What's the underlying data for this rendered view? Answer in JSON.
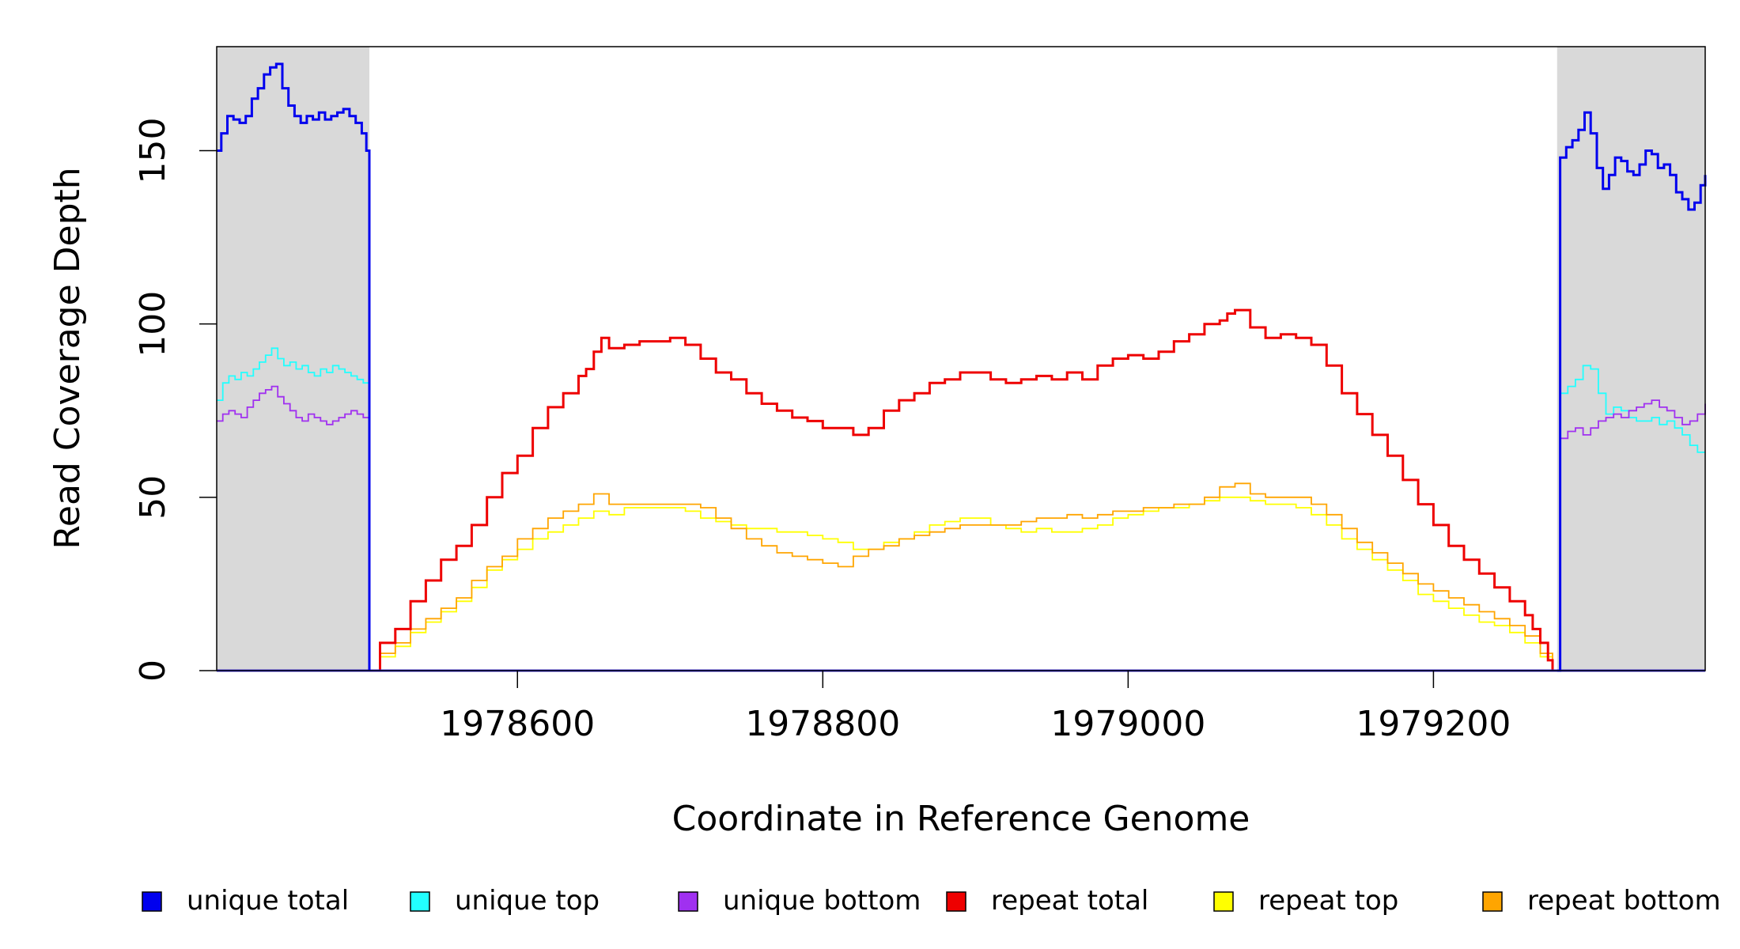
{
  "chart_data": {
    "type": "line",
    "title": "",
    "xlabel": "Coordinate in Reference Genome",
    "ylabel": "Read Coverage Depth",
    "xlim": [
      1978403,
      1979378
    ],
    "ylim": [
      0,
      180
    ],
    "x_ticks": [
      1978600,
      1978800,
      1979000,
      1979200
    ],
    "x_tick_labels": [
      "1978600",
      "1978800",
      "1979000",
      "1979200"
    ],
    "y_ticks": [
      0,
      50,
      100,
      150
    ],
    "y_tick_labels": [
      "0",
      "50",
      "100",
      "150"
    ],
    "grid": false,
    "legend_position": "bottom",
    "unique_regions": [
      [
        1978403,
        1978503
      ],
      [
        1979281,
        1979378
      ]
    ],
    "colors": {
      "unique_region_fill": "#d9d9d9",
      "unique total": "#0000ee",
      "unique top": "#22ffff",
      "unique bottom": "#a030f0",
      "repeat total": "#ee0000",
      "repeat top": "#ffff00",
      "repeat bottom": "#ffa500"
    },
    "series": [
      {
        "name": "unique total",
        "segments": [
          {
            "x": [
              1978403,
              1978406,
              1978410,
              1978414,
              1978418,
              1978422,
              1978426,
              1978430,
              1978434,
              1978438,
              1978442,
              1978446,
              1978450,
              1978454,
              1978458,
              1978462,
              1978466,
              1978470,
              1978474,
              1978478,
              1978482,
              1978486,
              1978490,
              1978494,
              1978498,
              1978501,
              1978503
            ],
            "y": [
              150,
              155,
              160,
              159,
              158,
              160,
              165,
              168,
              172,
              174,
              175,
              168,
              163,
              160,
              158,
              160,
              159,
              161,
              159,
              160,
              161,
              162,
              160,
              158,
              155,
              150,
              0
            ]
          },
          {
            "x": [
              1979281,
              1979283,
              1979287,
              1979291,
              1979295,
              1979299,
              1979303,
              1979307,
              1979311,
              1979315,
              1979319,
              1979323,
              1979327,
              1979331,
              1979335,
              1979339,
              1979343,
              1979347,
              1979351,
              1979355,
              1979359,
              1979363,
              1979367,
              1979371,
              1979375,
              1979378
            ],
            "y": [
              0,
              148,
              151,
              153,
              156,
              161,
              155,
              145,
              139,
              143,
              148,
              147,
              144,
              143,
              146,
              150,
              149,
              145,
              146,
              143,
              138,
              136,
              133,
              135,
              140,
              143
            ]
          }
        ]
      },
      {
        "name": "unique top",
        "segments": [
          {
            "x": [
              1978403,
              1978407,
              1978411,
              1978415,
              1978419,
              1978423,
              1978427,
              1978431,
              1978435,
              1978439,
              1978443,
              1978447,
              1978451,
              1978455,
              1978459,
              1978463,
              1978467,
              1978471,
              1978475,
              1978479,
              1978483,
              1978487,
              1978491,
              1978495,
              1978499,
              1978503
            ],
            "y": [
              78,
              83,
              85,
              84,
              86,
              85,
              87,
              89,
              91,
              93,
              90,
              88,
              89,
              87,
              88,
              86,
              85,
              87,
              86,
              88,
              87,
              86,
              85,
              84,
              83,
              0
            ]
          },
          {
            "x": [
              1979281,
              1979283,
              1979288,
              1979293,
              1979298,
              1979303,
              1979308,
              1979313,
              1979318,
              1979323,
              1979328,
              1979333,
              1979338,
              1979343,
              1979348,
              1979353,
              1979358,
              1979363,
              1979368,
              1979373,
              1979378
            ],
            "y": [
              0,
              80,
              82,
              84,
              88,
              87,
              80,
              74,
              76,
              75,
              73,
              72,
              72,
              73,
              71,
              72,
              70,
              68,
              65,
              63,
              63
            ]
          }
        ]
      },
      {
        "name": "unique bottom",
        "segments": [
          {
            "x": [
              1978403,
              1978407,
              1978411,
              1978415,
              1978419,
              1978423,
              1978427,
              1978431,
              1978435,
              1978439,
              1978443,
              1978447,
              1978451,
              1978455,
              1978459,
              1978463,
              1978467,
              1978471,
              1978475,
              1978479,
              1978483,
              1978487,
              1978491,
              1978495,
              1978499,
              1978503
            ],
            "y": [
              72,
              74,
              75,
              74,
              73,
              76,
              78,
              80,
              81,
              82,
              79,
              77,
              75,
              73,
              72,
              74,
              73,
              72,
              71,
              72,
              73,
              74,
              75,
              74,
              73,
              0
            ]
          },
          {
            "x": [
              1979281,
              1979283,
              1979288,
              1979293,
              1979298,
              1979303,
              1979308,
              1979313,
              1979318,
              1979323,
              1979328,
              1979333,
              1979338,
              1979343,
              1979348,
              1979353,
              1979358,
              1979363,
              1979368,
              1979373,
              1979378
            ],
            "y": [
              0,
              67,
              69,
              70,
              68,
              70,
              72,
              73,
              74,
              73,
              75,
              76,
              77,
              78,
              76,
              75,
              73,
              71,
              72,
              74,
              77
            ]
          }
        ]
      },
      {
        "name": "repeat total",
        "segments": [
          {
            "x": [
              1978503,
              1978510,
              1978520,
              1978530,
              1978540,
              1978550,
              1978560,
              1978570,
              1978580,
              1978590,
              1978600,
              1978610,
              1978620,
              1978630,
              1978640,
              1978645,
              1978650,
              1978655,
              1978660,
              1978670,
              1978680,
              1978690,
              1978700,
              1978710,
              1978720,
              1978730,
              1978740,
              1978750,
              1978760,
              1978770,
              1978780,
              1978790,
              1978800,
              1978810,
              1978820,
              1978830,
              1978840,
              1978850,
              1978860,
              1978870,
              1978880,
              1978890,
              1978900,
              1978910,
              1978920,
              1978930,
              1978940,
              1978950,
              1978960,
              1978970,
              1978980,
              1978990,
              1979000,
              1979010,
              1979020,
              1979030,
              1979040,
              1979050,
              1979060,
              1979065,
              1979070,
              1979080,
              1979090,
              1979100,
              1979110,
              1979120,
              1979130,
              1979140,
              1979150,
              1979160,
              1979170,
              1979180,
              1979190,
              1979200,
              1979210,
              1979220,
              1979230,
              1979240,
              1979250,
              1979260,
              1979265,
              1979270,
              1979275,
              1979278
            ],
            "y": [
              0,
              8,
              12,
              20,
              26,
              32,
              36,
              42,
              50,
              57,
              62,
              70,
              76,
              80,
              85,
              87,
              92,
              96,
              93,
              94,
              95,
              95,
              96,
              94,
              90,
              86,
              84,
              80,
              77,
              75,
              73,
              72,
              70,
              70,
              68,
              70,
              75,
              78,
              80,
              83,
              84,
              86,
              86,
              84,
              83,
              84,
              85,
              84,
              86,
              84,
              88,
              90,
              91,
              90,
              92,
              95,
              97,
              100,
              101,
              103,
              104,
              99,
              96,
              97,
              96,
              94,
              88,
              80,
              74,
              68,
              62,
              55,
              48,
              42,
              36,
              32,
              28,
              24,
              20,
              16,
              12,
              8,
              3,
              0
            ]
          }
        ]
      },
      {
        "name": "repeat top",
        "segments": [
          {
            "x": [
              1978503,
              1978510,
              1978520,
              1978530,
              1978540,
              1978550,
              1978560,
              1978570,
              1978580,
              1978590,
              1978600,
              1978610,
              1978620,
              1978630,
              1978640,
              1978650,
              1978660,
              1978670,
              1978680,
              1978690,
              1978700,
              1978710,
              1978720,
              1978730,
              1978740,
              1978750,
              1978760,
              1978770,
              1978780,
              1978790,
              1978800,
              1978810,
              1978820,
              1978830,
              1978840,
              1978850,
              1978860,
              1978870,
              1978880,
              1978890,
              1978900,
              1978910,
              1978920,
              1978930,
              1978940,
              1978950,
              1978960,
              1978970,
              1978980,
              1978990,
              1979000,
              1979010,
              1979020,
              1979030,
              1979040,
              1979050,
              1979060,
              1979070,
              1979080,
              1979090,
              1979100,
              1979110,
              1979120,
              1979130,
              1979140,
              1979150,
              1979160,
              1979170,
              1979180,
              1979190,
              1979200,
              1979210,
              1979220,
              1979230,
              1979240,
              1979250,
              1979260,
              1979270,
              1979278
            ],
            "y": [
              0,
              4,
              7,
              11,
              14,
              17,
              20,
              24,
              29,
              32,
              35,
              38,
              40,
              42,
              44,
              46,
              45,
              47,
              47,
              47,
              47,
              46,
              44,
              43,
              42,
              41,
              41,
              40,
              40,
              39,
              38,
              37,
              35,
              35,
              37,
              38,
              40,
              42,
              43,
              44,
              44,
              42,
              41,
              40,
              41,
              40,
              40,
              41,
              42,
              44,
              45,
              46,
              47,
              47,
              48,
              49,
              50,
              50,
              49,
              48,
              48,
              47,
              45,
              42,
              38,
              35,
              32,
              29,
              26,
              22,
              20,
              18,
              16,
              14,
              13,
              11,
              8,
              4,
              0
            ]
          }
        ]
      },
      {
        "name": "repeat bottom",
        "segments": [
          {
            "x": [
              1978503,
              1978510,
              1978520,
              1978530,
              1978540,
              1978550,
              1978560,
              1978570,
              1978580,
              1978590,
              1978600,
              1978610,
              1978620,
              1978630,
              1978640,
              1978650,
              1978660,
              1978670,
              1978680,
              1978690,
              1978700,
              1978710,
              1978720,
              1978730,
              1978740,
              1978750,
              1978760,
              1978770,
              1978780,
              1978790,
              1978800,
              1978810,
              1978820,
              1978830,
              1978840,
              1978850,
              1978860,
              1978870,
              1978880,
              1978890,
              1978900,
              1978910,
              1978920,
              1978930,
              1978940,
              1978950,
              1978960,
              1978970,
              1978980,
              1978990,
              1979000,
              1979010,
              1979020,
              1979030,
              1979040,
              1979050,
              1979060,
              1979070,
              1979080,
              1979090,
              1979100,
              1979110,
              1979120,
              1979130,
              1979140,
              1979150,
              1979160,
              1979170,
              1979180,
              1979190,
              1979200,
              1979210,
              1979220,
              1979230,
              1979240,
              1979250,
              1979260,
              1979270,
              1979278
            ],
            "y": [
              0,
              5,
              8,
              12,
              15,
              18,
              21,
              26,
              30,
              33,
              38,
              41,
              44,
              46,
              48,
              51,
              48,
              48,
              48,
              48,
              48,
              48,
              47,
              44,
              41,
              38,
              36,
              34,
              33,
              32,
              31,
              30,
              33,
              35,
              36,
              38,
              39,
              40,
              41,
              42,
              42,
              42,
              42,
              43,
              44,
              44,
              45,
              44,
              45,
              46,
              46,
              47,
              47,
              48,
              48,
              50,
              53,
              54,
              51,
              50,
              50,
              50,
              48,
              45,
              41,
              37,
              34,
              31,
              28,
              25,
              23,
              21,
              19,
              17,
              15,
              13,
              10,
              5,
              0
            ]
          }
        ]
      }
    ]
  }
}
